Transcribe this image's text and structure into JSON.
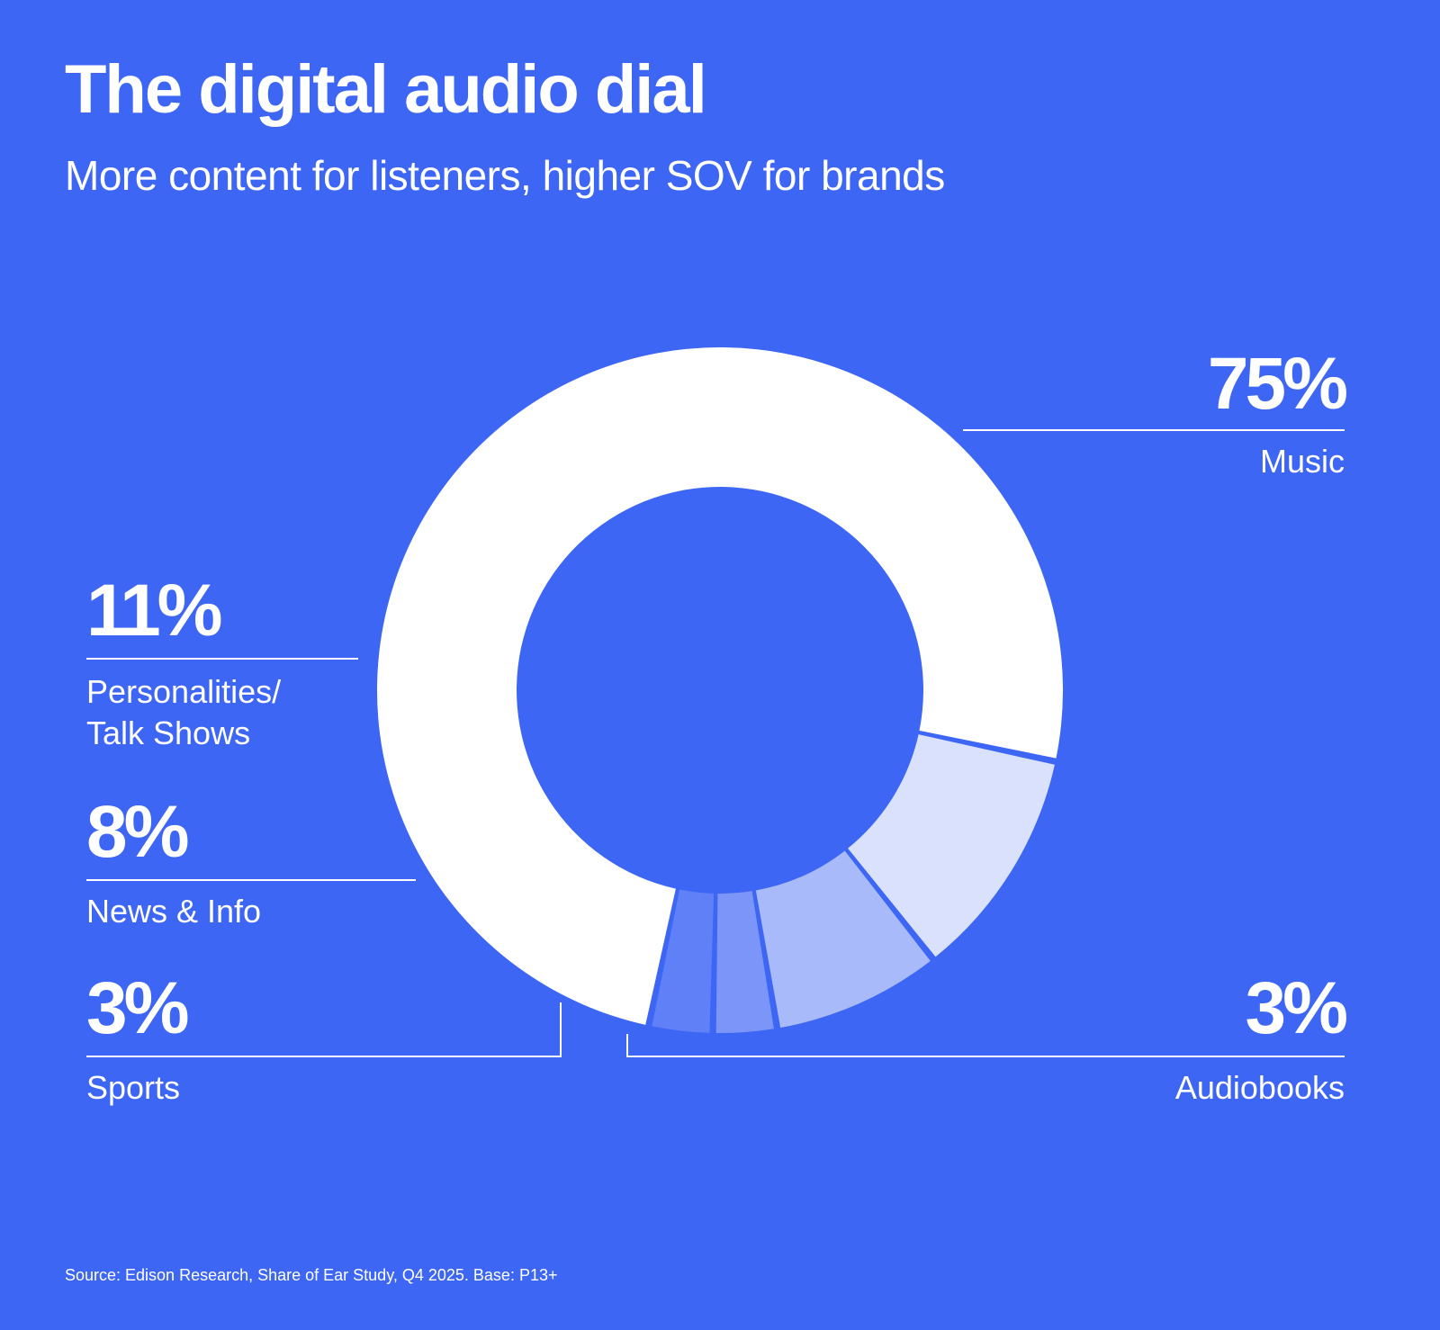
{
  "header": {
    "title": "The digital audio dial",
    "subtitle": "More content for listeners, higher SOV for brands"
  },
  "footer": {
    "source": "Source: Edison Research, Share of Ear Study, Q4 2025. Base: P13+"
  },
  "chart_data": {
    "type": "pie",
    "title": "The digital audio dial",
    "subtitle": "More content for listeners, higher SOV for brands",
    "donut": true,
    "categories": [
      "Music",
      "Personalities/ Talk Shows",
      "News & Info",
      "Sports",
      "Audiobooks"
    ],
    "values": [
      75,
      11,
      8,
      3,
      3
    ],
    "slices": [
      {
        "name": "Music",
        "value": 75,
        "value_label": "75%",
        "label": "Music",
        "color": "#FFFFFF"
      },
      {
        "name": "Personalities/Talk Shows",
        "value": 11,
        "value_label": "11%",
        "label_line1": "Personalities/",
        "label_line2": "Talk Shows",
        "color": "#D9E1FC"
      },
      {
        "name": "News & Info",
        "value": 8,
        "value_label": "8%",
        "label": "News & Info",
        "color": "#A9BAFA"
      },
      {
        "name": "Sports",
        "value": 3,
        "value_label": "3%",
        "label": "Sports",
        "color": "#7B95F8"
      },
      {
        "name": "Audiobooks",
        "value": 3,
        "value_label": "3%",
        "label": "Audiobooks",
        "color": "#5F80F7"
      }
    ],
    "background_color": "#3D66F5"
  }
}
